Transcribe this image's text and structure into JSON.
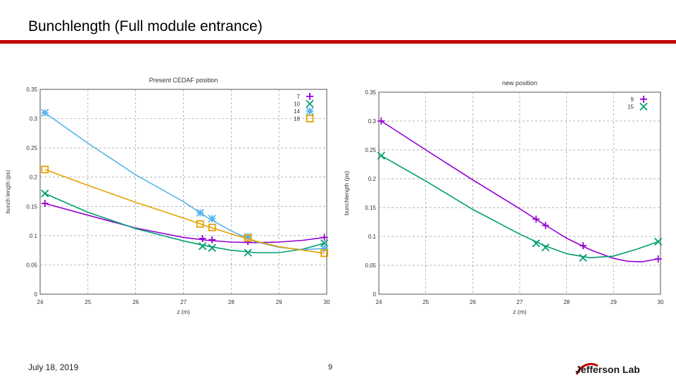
{
  "slide": {
    "title": "Bunchlength (Full module entrance)",
    "date": "July 18, 2019",
    "page_number": "9",
    "logo_text": "Jefferson Lab",
    "accent_color": "#c00000"
  },
  "chart_data": [
    {
      "type": "line",
      "title": "Present CEDAF position",
      "xlabel": "z (m)",
      "ylabel": "bunch length (ps)",
      "xlim": [
        24,
        30
      ],
      "ylim": [
        0,
        0.35
      ],
      "xticks": [
        "24",
        "25",
        "26",
        "27",
        "28",
        "29",
        "30"
      ],
      "yticks": [
        "0",
        "0.05",
        "0.1",
        "0.15",
        "0.2",
        "0.25",
        "0.3",
        "0.35"
      ],
      "grid": true,
      "legend_position": "top-right",
      "series": [
        {
          "name": "7",
          "marker": "plus",
          "color": "#9400d3",
          "x": [
            24.1,
            27.4,
            27.6,
            28.35,
            29.95
          ],
          "values": [
            0.155,
            0.095,
            0.093,
            0.09,
            0.097
          ],
          "fit_x": [
            24.1,
            25,
            26,
            27,
            27.5,
            28,
            28.5,
            29,
            29.5,
            29.95
          ],
          "fit_y": [
            0.155,
            0.135,
            0.113,
            0.097,
            0.092,
            0.089,
            0.088,
            0.089,
            0.092,
            0.097
          ]
        },
        {
          "name": "10",
          "marker": "cross",
          "color": "#009e73",
          "x": [
            24.1,
            27.4,
            27.6,
            28.35,
            29.95
          ],
          "values": [
            0.172,
            0.082,
            0.079,
            0.071,
            0.087
          ],
          "fit_x": [
            24.1,
            25,
            26,
            27,
            27.5,
            28,
            28.5,
            29,
            29.5,
            29.95
          ],
          "fit_y": [
            0.172,
            0.14,
            0.112,
            0.091,
            0.082,
            0.075,
            0.071,
            0.071,
            0.077,
            0.087
          ]
        },
        {
          "name": "14",
          "marker": "star",
          "color": "#56b4e9",
          "x": [
            24.1,
            27.35,
            27.6,
            28.35,
            29.95
          ],
          "values": [
            0.31,
            0.139,
            0.129,
            0.098,
            0.078
          ],
          "fit_x": [
            24.1,
            25,
            26,
            27,
            27.5,
            28,
            28.5,
            29,
            29.5,
            29.95
          ],
          "fit_y": [
            0.31,
            0.258,
            0.204,
            0.158,
            0.131,
            0.108,
            0.09,
            0.08,
            0.076,
            0.078
          ]
        },
        {
          "name": "18",
          "marker": "square",
          "color": "#e69f00",
          "x": [
            24.1,
            27.35,
            27.6,
            28.35,
            29.95
          ],
          "values": [
            0.213,
            0.12,
            0.114,
            0.096,
            0.07
          ],
          "fit_x": [
            24.1,
            25,
            26,
            27,
            27.5,
            28,
            28.5,
            29,
            29.5,
            29.95
          ],
          "fit_y": [
            0.213,
            0.186,
            0.157,
            0.13,
            0.116,
            0.103,
            0.091,
            0.081,
            0.075,
            0.07
          ]
        }
      ]
    },
    {
      "type": "line",
      "title": "new position",
      "xlabel": "z (m)",
      "ylabel": "bunchlength (ps)",
      "xlim": [
        24,
        30
      ],
      "ylim": [
        0,
        0.35
      ],
      "xticks": [
        "24",
        "25",
        "26",
        "27",
        "28",
        "29",
        "30"
      ],
      "yticks": [
        "0",
        "0.05",
        "0.1",
        "0.15",
        "0.2",
        "0.25",
        "0.3",
        "0.35"
      ],
      "grid": true,
      "legend_position": "top-right",
      "series": [
        {
          "name": "9",
          "marker": "plus",
          "color": "#9400d3",
          "x": [
            24.05,
            27.35,
            27.55,
            28.35,
            29.95
          ],
          "values": [
            0.3,
            0.13,
            0.119,
            0.084,
            0.061
          ],
          "fit_x": [
            24.05,
            25,
            26,
            27,
            27.5,
            28,
            28.5,
            29,
            29.3,
            29.6,
            29.95
          ],
          "fit_y": [
            0.3,
            0.25,
            0.198,
            0.148,
            0.122,
            0.097,
            0.077,
            0.062,
            0.057,
            0.056,
            0.061
          ]
        },
        {
          "name": "15",
          "marker": "cross",
          "color": "#009e73",
          "x": [
            24.05,
            27.35,
            27.55,
            28.35,
            29.95
          ],
          "values": [
            0.24,
            0.088,
            0.081,
            0.063,
            0.091
          ],
          "fit_x": [
            24.05,
            25,
            26,
            27,
            27.5,
            28,
            28.5,
            29,
            29.5,
            29.95
          ],
          "fit_y": [
            0.24,
            0.196,
            0.147,
            0.104,
            0.085,
            0.07,
            0.063,
            0.066,
            0.078,
            0.091
          ]
        }
      ]
    }
  ]
}
